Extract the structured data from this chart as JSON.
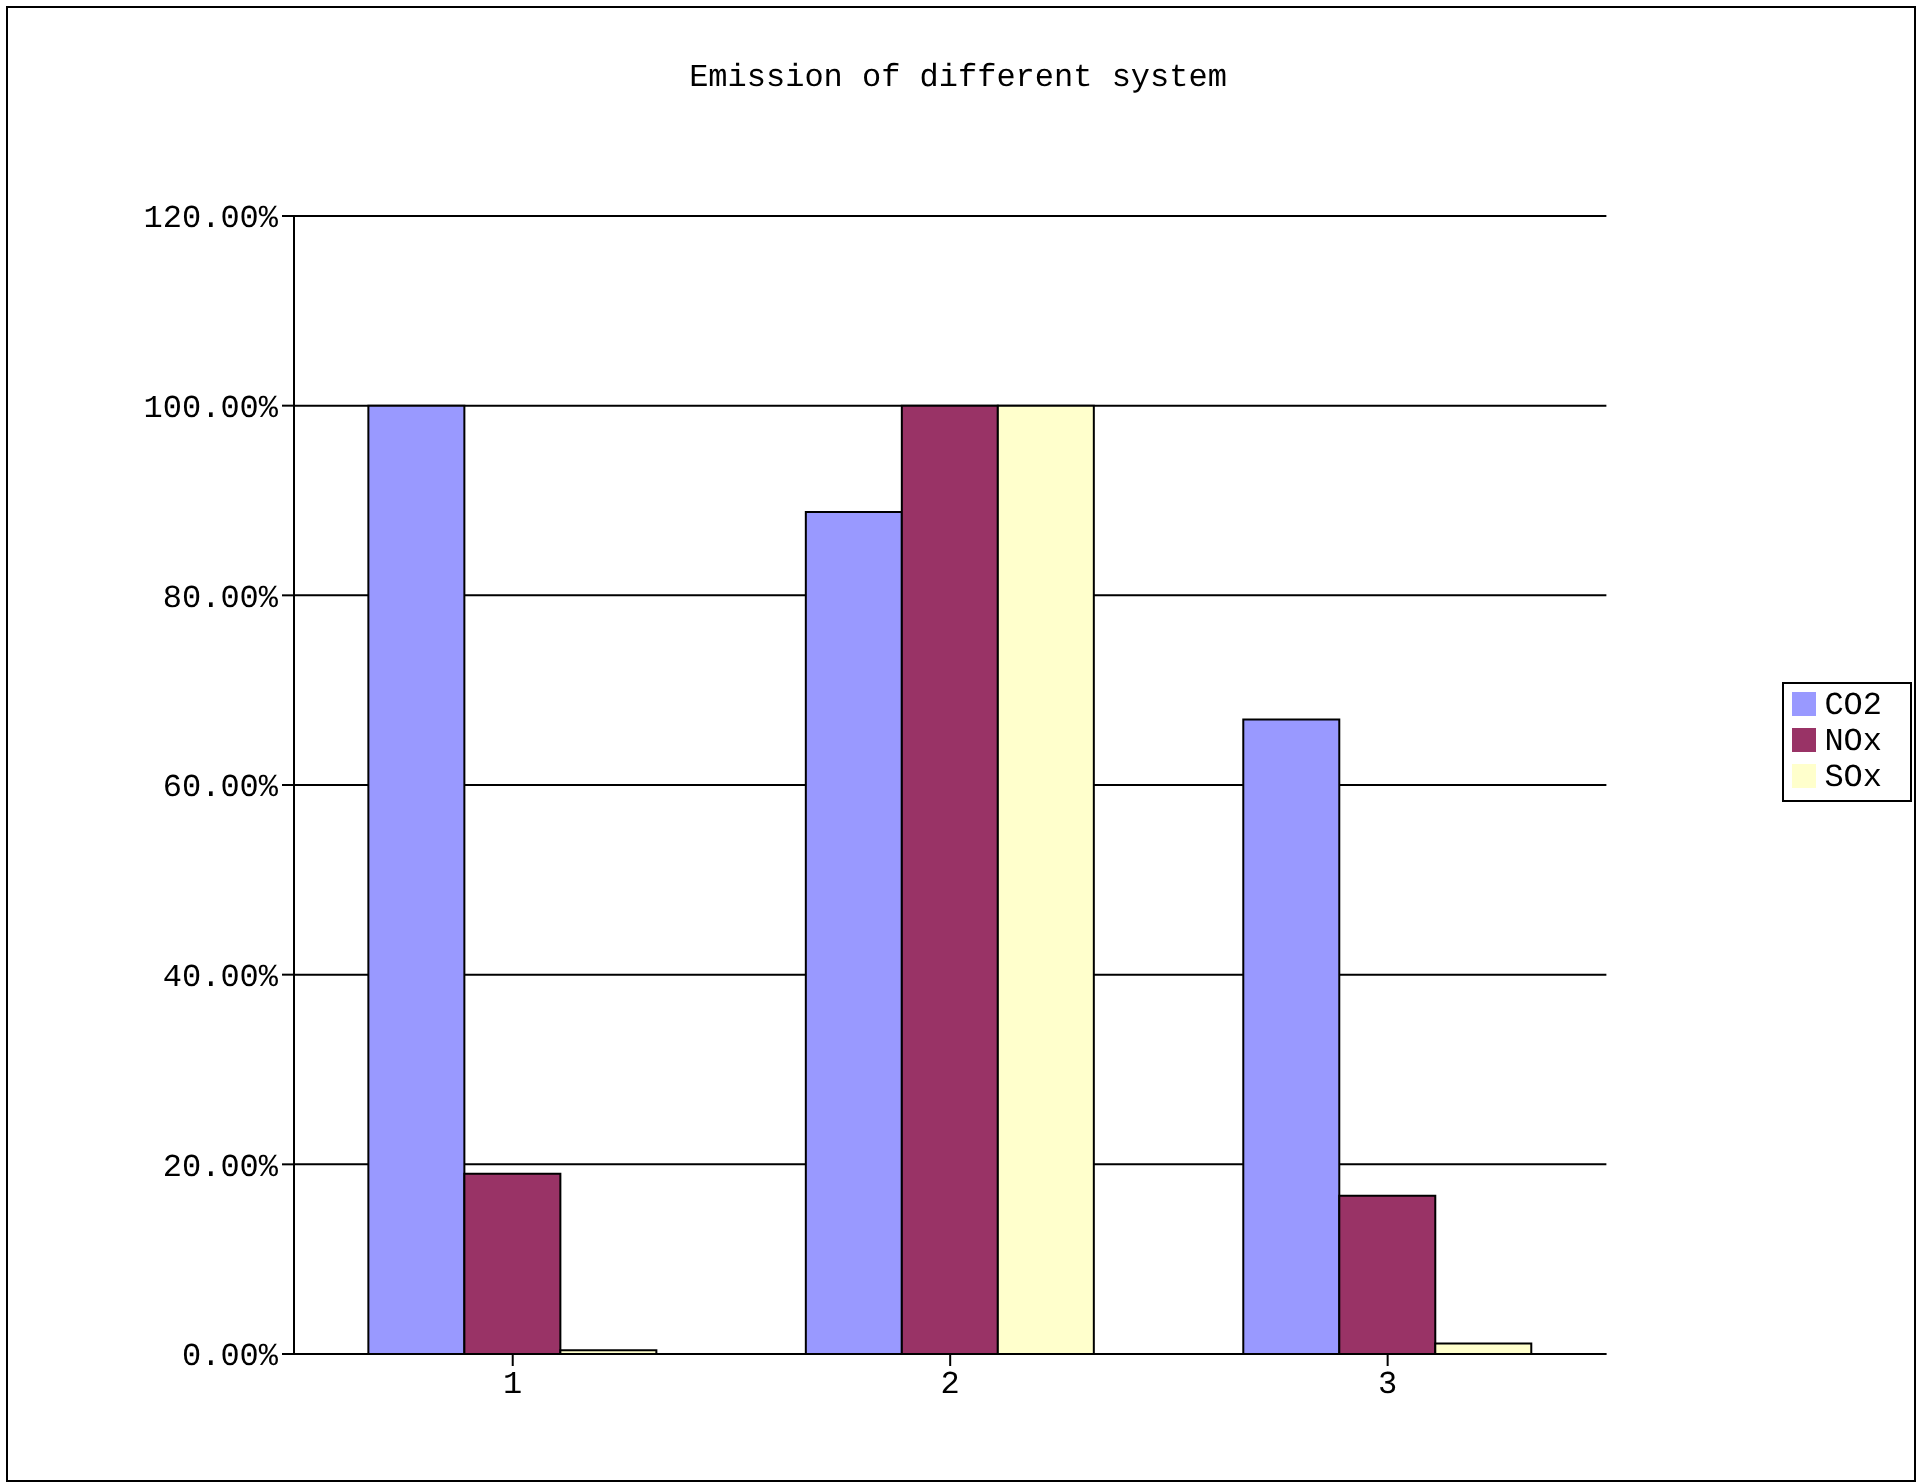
{
  "chart_data": {
    "type": "bar",
    "title": "Emission of different system",
    "categories": [
      "1",
      "2",
      "3"
    ],
    "series": [
      {
        "name": "CO2",
        "color": "#9999ff",
        "values": [
          100,
          88.8,
          66.9
        ]
      },
      {
        "name": "NOx",
        "color": "#993366",
        "values": [
          19.0,
          100,
          16.7
        ]
      },
      {
        "name": "SOx",
        "color": "#ffffcc",
        "values": [
          0.4,
          100,
          1.1
        ]
      }
    ],
    "ylim": [
      0,
      120
    ],
    "yticks": [
      {
        "value": 0,
        "label": "0.00%"
      },
      {
        "value": 20,
        "label": "20.00%"
      },
      {
        "value": 40,
        "label": "40.00%"
      },
      {
        "value": 60,
        "label": "60.00%"
      },
      {
        "value": 80,
        "label": "80.00%"
      },
      {
        "value": 100,
        "label": "100.00%"
      },
      {
        "value": 120,
        "label": "120.00%"
      }
    ],
    "grid": "y",
    "legend": "right"
  }
}
